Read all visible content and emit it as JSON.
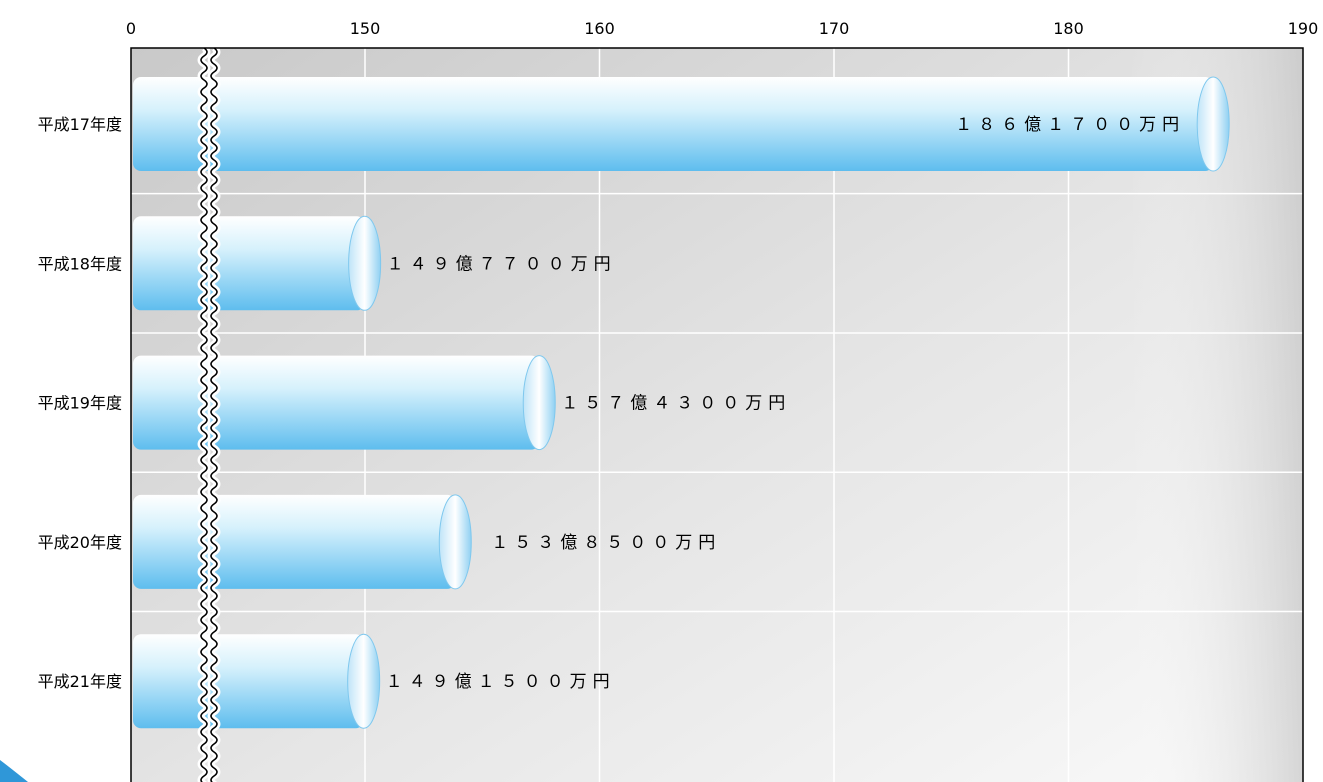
{
  "chart_data": {
    "type": "bar",
    "orientation": "horizontal",
    "title": "",
    "xlabel": "",
    "ylabel": "",
    "axis_break": true,
    "x_ticks": [
      "0",
      "150",
      "160",
      "170",
      "180",
      "190"
    ],
    "x_tick_values": [
      0,
      150,
      160,
      170,
      180,
      190
    ],
    "xlim": [
      0,
      190
    ],
    "grid": true,
    "categories": [
      "平成17年度",
      "平成18年度",
      "平成19年度",
      "平成20年度",
      "平成21年度"
    ],
    "values": [
      186.17,
      149.77,
      157.43,
      153.85,
      149.15
    ],
    "data_labels": [
      "１８６億１７００万円",
      "１４９億７７００万円",
      "１５７億４３００万円",
      "１５３億８５００万円",
      "１４９億１５００万円"
    ]
  },
  "colors": {
    "bar_light": "#ffffff",
    "bar_mid": "#c8ecfb",
    "bar_dark": "#5ebdee",
    "plot_bg_dark": "#c8c8c8",
    "plot_bg_light": "#f6f6f6",
    "corner_accent": "#2f97d8"
  }
}
